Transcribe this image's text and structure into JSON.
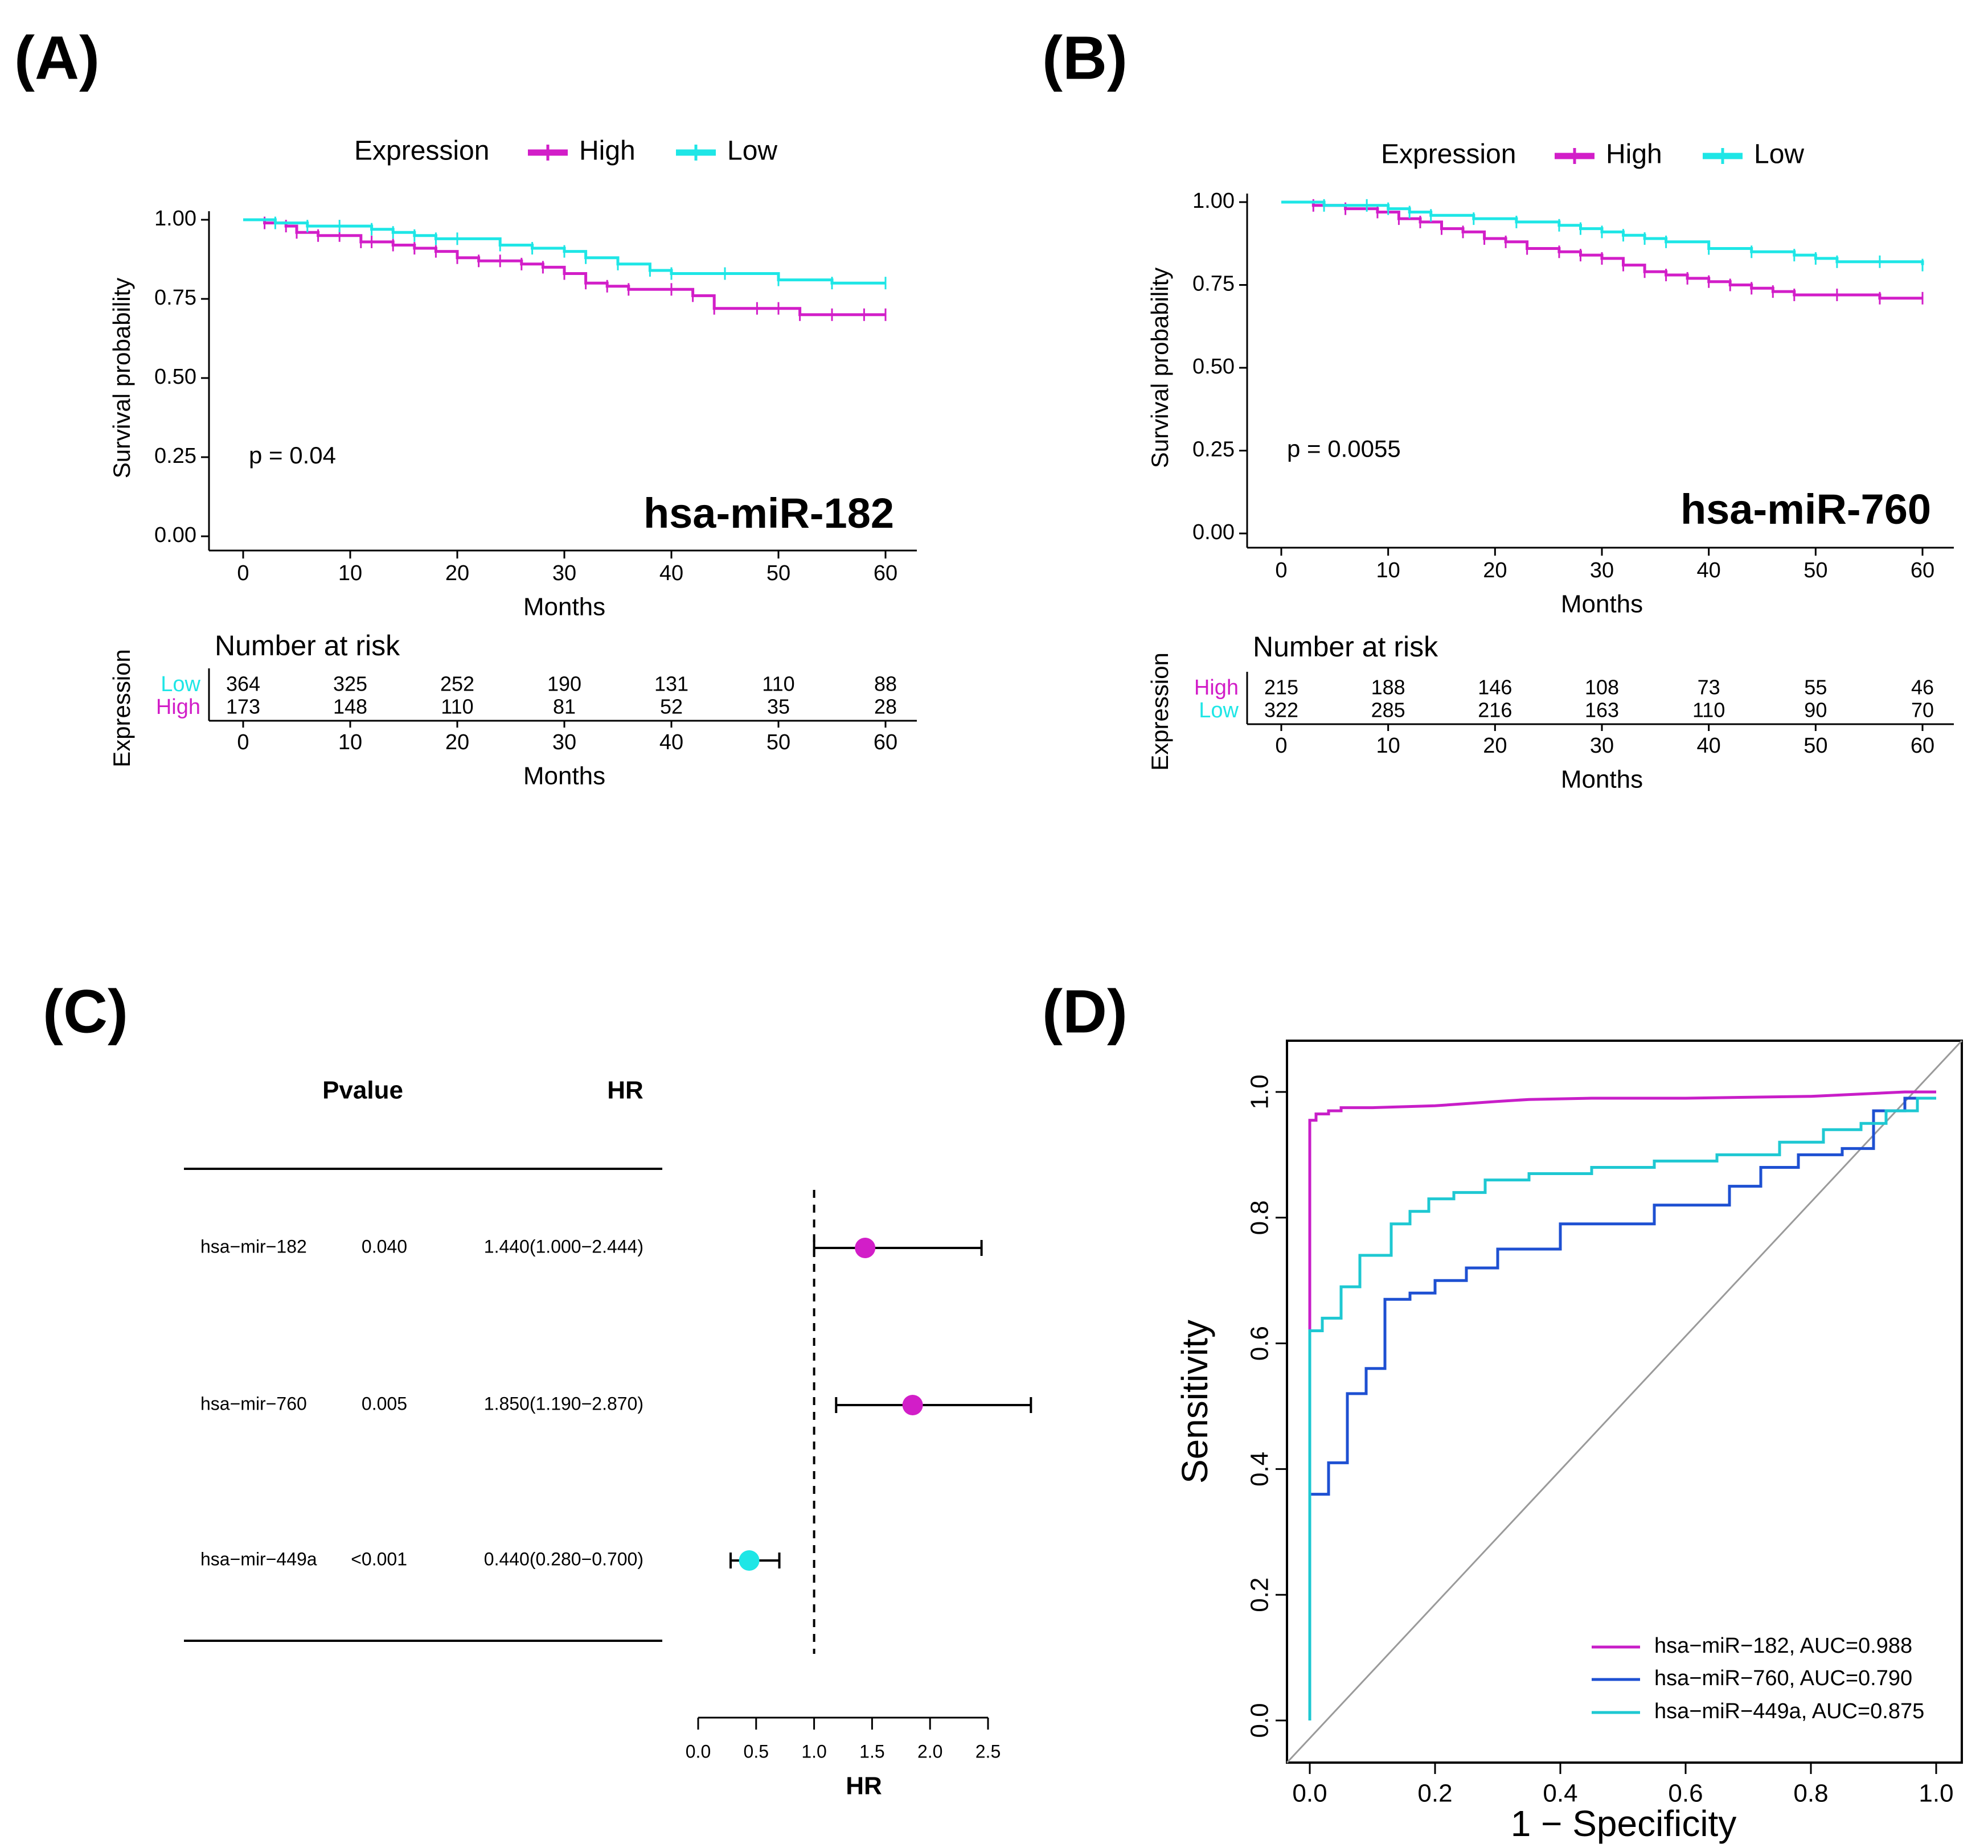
{
  "colors": {
    "high": "#d21ec8",
    "low": "#1ee6e6",
    "mir182": "#c81ec8",
    "mir760": "#1e50d2",
    "mir449a": "#1ec8d2",
    "diag": "#9a9a9a"
  },
  "panel_labels": [
    "(A)",
    "(B)",
    "(C)",
    "(D)"
  ],
  "chart_data": [
    {
      "panel": "A",
      "type": "line",
      "subtype": "kaplan-meier",
      "title": "hsa-miR-182",
      "legend_title": "Expression",
      "pvalue_text": "p = 0.04",
      "xlabel": "Months",
      "ylabel": "Survival probability",
      "xlim": [
        0,
        60
      ],
      "ylim": [
        0,
        1
      ],
      "xticks": [
        "0",
        "10",
        "20",
        "30",
        "40",
        "50",
        "60"
      ],
      "yticks": [
        "0.00",
        "0.25",
        "0.50",
        "0.75",
        "1.00"
      ],
      "series": [
        {
          "name": "High",
          "color_key": "high",
          "x": [
            0,
            2,
            4,
            5,
            7,
            9,
            11,
            12,
            14,
            16,
            18,
            20,
            22,
            24,
            26,
            28,
            30,
            32,
            34,
            36,
            40,
            42,
            44,
            48,
            50,
            52,
            55,
            58,
            60
          ],
          "y": [
            1.0,
            0.99,
            0.98,
            0.96,
            0.95,
            0.95,
            0.93,
            0.93,
            0.92,
            0.91,
            0.9,
            0.88,
            0.87,
            0.87,
            0.86,
            0.85,
            0.83,
            0.8,
            0.79,
            0.78,
            0.78,
            0.76,
            0.72,
            0.72,
            0.72,
            0.7,
            0.7,
            0.7,
            0.7
          ]
        },
        {
          "name": "Low",
          "color_key": "low",
          "x": [
            0,
            3,
            6,
            9,
            12,
            14,
            16,
            18,
            20,
            24,
            27,
            30,
            32,
            35,
            38,
            40,
            45,
            50,
            55,
            60
          ],
          "y": [
            1.0,
            0.99,
            0.98,
            0.98,
            0.97,
            0.96,
            0.95,
            0.94,
            0.94,
            0.92,
            0.91,
            0.9,
            0.88,
            0.86,
            0.84,
            0.83,
            0.83,
            0.81,
            0.8,
            0.8
          ]
        }
      ],
      "risk_table": {
        "title": "Number at risk",
        "ylabel": "Expression",
        "xlabel": "Months",
        "xticks": [
          "0",
          "10",
          "20",
          "30",
          "40",
          "50",
          "60"
        ],
        "rows": [
          {
            "name": "Low",
            "color_key": "low",
            "values": [
              "364",
              "325",
              "252",
              "190",
              "131",
              "110",
              "88"
            ]
          },
          {
            "name": "High",
            "color_key": "high",
            "values": [
              "173",
              "148",
              "110",
              "81",
              "52",
              "35",
              "28"
            ]
          }
        ]
      }
    },
    {
      "panel": "B",
      "type": "line",
      "subtype": "kaplan-meier",
      "title": "hsa-miR-760",
      "legend_title": "Expression",
      "pvalue_text": "p = 0.0055",
      "xlabel": "Months",
      "ylabel": "Survival probability",
      "xlim": [
        0,
        60
      ],
      "ylim": [
        0,
        1
      ],
      "xticks": [
        "0",
        "10",
        "20",
        "30",
        "40",
        "50",
        "60"
      ],
      "yticks": [
        "0.00",
        "0.25",
        "0.50",
        "0.75",
        "1.00"
      ],
      "series": [
        {
          "name": "High",
          "color_key": "high",
          "x": [
            0,
            3,
            6,
            9,
            11,
            13,
            15,
            17,
            19,
            21,
            23,
            26,
            28,
            30,
            32,
            34,
            36,
            38,
            40,
            42,
            44,
            46,
            48,
            52,
            56,
            60
          ],
          "y": [
            1.0,
            0.99,
            0.98,
            0.97,
            0.95,
            0.94,
            0.92,
            0.91,
            0.89,
            0.88,
            0.86,
            0.85,
            0.84,
            0.83,
            0.81,
            0.79,
            0.78,
            0.77,
            0.76,
            0.75,
            0.74,
            0.73,
            0.72,
            0.72,
            0.71,
            0.71
          ]
        },
        {
          "name": "Low",
          "color_key": "low",
          "x": [
            0,
            4,
            8,
            10,
            12,
            14,
            18,
            22,
            26,
            28,
            30,
            32,
            34,
            36,
            40,
            44,
            48,
            50,
            52,
            56,
            60
          ],
          "y": [
            1.0,
            0.99,
            0.99,
            0.98,
            0.97,
            0.96,
            0.95,
            0.94,
            0.93,
            0.92,
            0.91,
            0.9,
            0.89,
            0.88,
            0.86,
            0.85,
            0.84,
            0.83,
            0.82,
            0.82,
            0.81
          ]
        }
      ],
      "risk_table": {
        "title": "Number at risk",
        "ylabel": "Expression",
        "xlabel": "Months",
        "xticks": [
          "0",
          "10",
          "20",
          "30",
          "40",
          "50",
          "60"
        ],
        "rows": [
          {
            "name": "High",
            "color_key": "high",
            "values": [
              "215",
              "188",
              "146",
              "108",
              "73",
              "55",
              "46"
            ]
          },
          {
            "name": "Low",
            "color_key": "low",
            "values": [
              "322",
              "285",
              "216",
              "163",
              "110",
              "90",
              "70"
            ]
          }
        ]
      }
    },
    {
      "panel": "C",
      "type": "forest",
      "col_headers": {
        "pvalue": "Pvalue",
        "hr": "HR"
      },
      "xlabel": "HR",
      "xlim": [
        0,
        2.5
      ],
      "xticks": [
        "0.0",
        "0.5",
        "1.0",
        "1.5",
        "2.0",
        "2.5"
      ],
      "reference_line": 1.0,
      "rows": [
        {
          "name": "hsa−mir−182",
          "pvalue": "0.040",
          "hr_text": "1.440(1.000−2.444)",
          "hr": 1.44,
          "lower": 1.0,
          "upper": 2.444,
          "color_key": "high"
        },
        {
          "name": "hsa−mir−760",
          "pvalue": "0.005",
          "hr_text": "1.850(1.190−2.870)",
          "hr": 1.85,
          "lower": 1.19,
          "upper": 2.87,
          "color_key": "high"
        },
        {
          "name": "hsa−mir−449a",
          "pvalue": "<0.001",
          "hr_text": "0.440(0.280−0.700)",
          "hr": 0.44,
          "lower": 0.28,
          "upper": 0.7,
          "color_key": "low"
        }
      ]
    },
    {
      "panel": "D",
      "type": "line",
      "subtype": "roc",
      "xlabel": "1 − Specificity",
      "ylabel": "Sensitivity",
      "xlim": [
        0,
        1
      ],
      "ylim": [
        0,
        1
      ],
      "xticks": [
        "0.0",
        "0.2",
        "0.4",
        "0.6",
        "0.8",
        "1.0"
      ],
      "yticks": [
        "0.0",
        "0.2",
        "0.4",
        "0.6",
        "0.8",
        "1.0"
      ],
      "legend_position": "bottom-right",
      "series": [
        {
          "name": "hsa−miR−182, AUC=0.988",
          "color_key": "mir182",
          "x": [
            0,
            0,
            0,
            0.01,
            0.01,
            0.03,
            0.03,
            0.05,
            0.05,
            0.1,
            0.2,
            0.3,
            0.35,
            0.45,
            0.6,
            0.8,
            0.95,
            1.0
          ],
          "y": [
            0,
            0.62,
            0.955,
            0.955,
            0.965,
            0.965,
            0.97,
            0.97,
            0.975,
            0.975,
            0.978,
            0.985,
            0.988,
            0.99,
            0.99,
            0.993,
            1.0,
            1.0
          ]
        },
        {
          "name": "hsa−miR−760, AUC=0.790",
          "color_key": "mir760",
          "x": [
            0,
            0,
            0.03,
            0.03,
            0.06,
            0.06,
            0.09,
            0.09,
            0.12,
            0.12,
            0.16,
            0.16,
            0.2,
            0.2,
            0.25,
            0.25,
            0.3,
            0.3,
            0.4,
            0.4,
            0.55,
            0.55,
            0.67,
            0.67,
            0.72,
            0.72,
            0.78,
            0.78,
            0.85,
            0.85,
            0.9,
            0.9,
            0.95,
            0.95,
            1.0
          ],
          "y": [
            0,
            0.36,
            0.36,
            0.41,
            0.41,
            0.52,
            0.52,
            0.56,
            0.56,
            0.67,
            0.67,
            0.68,
            0.68,
            0.7,
            0.7,
            0.72,
            0.72,
            0.75,
            0.75,
            0.79,
            0.79,
            0.82,
            0.82,
            0.85,
            0.85,
            0.88,
            0.88,
            0.9,
            0.9,
            0.91,
            0.91,
            0.97,
            0.97,
            0.99,
            0.99
          ]
        },
        {
          "name": "hsa−miR−449a, AUC=0.875",
          "color_key": "mir449a",
          "x": [
            0,
            0,
            0.02,
            0.02,
            0.05,
            0.05,
            0.08,
            0.08,
            0.13,
            0.13,
            0.16,
            0.16,
            0.19,
            0.19,
            0.23,
            0.23,
            0.28,
            0.28,
            0.35,
            0.35,
            0.45,
            0.45,
            0.55,
            0.55,
            0.65,
            0.65,
            0.75,
            0.75,
            0.82,
            0.82,
            0.88,
            0.88,
            0.92,
            0.92,
            0.97,
            0.97,
            1.0
          ],
          "y": [
            0,
            0.62,
            0.62,
            0.64,
            0.64,
            0.69,
            0.69,
            0.74,
            0.74,
            0.79,
            0.79,
            0.81,
            0.81,
            0.83,
            0.83,
            0.84,
            0.84,
            0.86,
            0.86,
            0.87,
            0.87,
            0.88,
            0.88,
            0.89,
            0.89,
            0.9,
            0.9,
            0.92,
            0.92,
            0.94,
            0.94,
            0.95,
            0.95,
            0.97,
            0.97,
            0.99,
            0.99
          ]
        }
      ]
    }
  ]
}
